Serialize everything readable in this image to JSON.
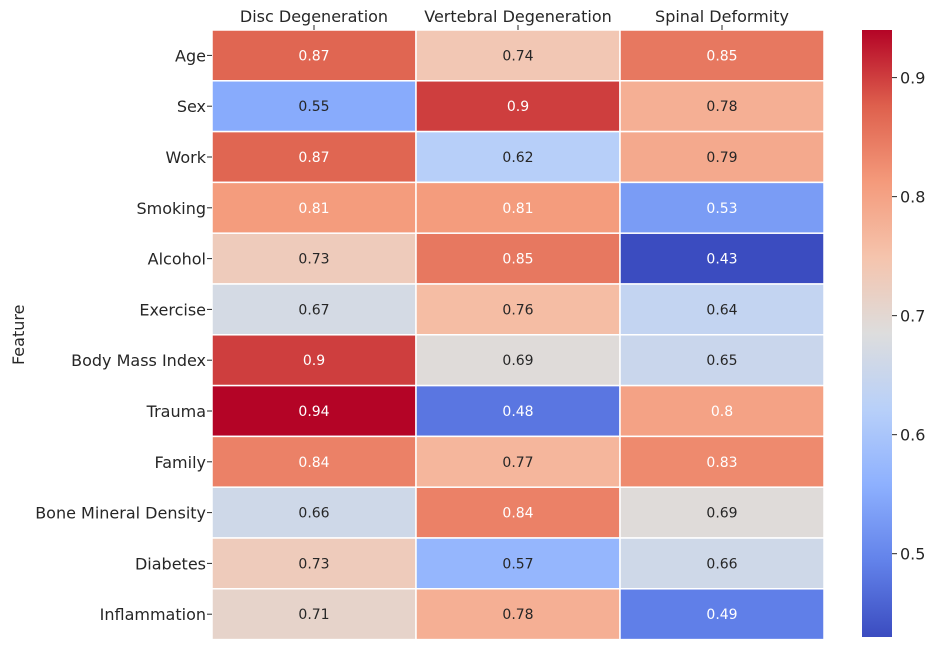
{
  "chart_data": {
    "type": "heatmap",
    "ylabel": "Feature",
    "columns": [
      "Disc Degeneration",
      "Vertebral Degeneration",
      "Spinal Deformity"
    ],
    "rows": [
      "Age",
      "Sex",
      "Work",
      "Smoking",
      "Alcohol",
      "Exercise",
      "Body Mass Index",
      "Trauma",
      "Family",
      "Bone Mineral Density",
      "Diabetes",
      "Inflammation"
    ],
    "values": [
      [
        0.87,
        0.74,
        0.85
      ],
      [
        0.55,
        0.9,
        0.78
      ],
      [
        0.87,
        0.62,
        0.79
      ],
      [
        0.81,
        0.81,
        0.53
      ],
      [
        0.73,
        0.85,
        0.43
      ],
      [
        0.67,
        0.76,
        0.64
      ],
      [
        0.9,
        0.69,
        0.65
      ],
      [
        0.94,
        0.48,
        0.8
      ],
      [
        0.84,
        0.77,
        0.83
      ],
      [
        0.66,
        0.84,
        0.69
      ],
      [
        0.73,
        0.57,
        0.66
      ],
      [
        0.71,
        0.78,
        0.49
      ]
    ],
    "colormap": "coolwarm",
    "vmin": 0.43,
    "vmax": 0.94,
    "colorbar_ticks": [
      "0.5",
      "0.6",
      "0.7",
      "0.8",
      "0.9"
    ],
    "cell_separator_color": "#ffffff"
  }
}
